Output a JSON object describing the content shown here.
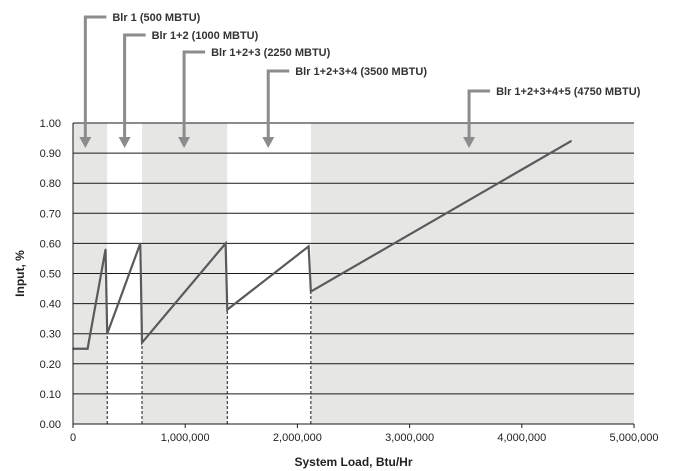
{
  "chart_data": {
    "type": "line",
    "title": "",
    "xlabel": "System Load, Btu/Hr",
    "ylabel": "Input, %",
    "xlim": [
      0,
      5000000
    ],
    "ylim": [
      0,
      1.0
    ],
    "x_ticks": [
      0,
      1000000,
      2000000,
      3000000,
      4000000,
      5000000
    ],
    "x_tick_labels": [
      "0",
      "1,000,000",
      "2,000,000",
      "3,000,000",
      "4,000,000",
      "5,000,000"
    ],
    "y_ticks": [
      0,
      0.1,
      0.2,
      0.3,
      0.4,
      0.5,
      0.6,
      0.7,
      0.8,
      0.9,
      1.0
    ],
    "y_tick_labels": [
      "0.00",
      "0.10",
      "0.20",
      "0.30",
      "0.40",
      "0.50",
      "0.60",
      "0.70",
      "0.80",
      "0.90",
      "1.00"
    ],
    "grid": "horizontal",
    "colors": {
      "line": "#5a5a5a",
      "band": "#e6e6e5",
      "grid": "#1a1a1a",
      "arrow": "#8c8c8c"
    },
    "series": [
      {
        "x": [
          0,
          130000,
          290000,
          305000,
          600000,
          615000,
          1360000,
          1375000,
          2100000,
          2120000,
          4440000
        ],
        "y": [
          0.25,
          0.25,
          0.58,
          0.3,
          0.6,
          0.27,
          0.6,
          0.38,
          0.59,
          0.44,
          0.94
        ]
      }
    ],
    "boiler_stages": [
      {
        "label": "Blr 1 (500 MBTU)",
        "band": [
          0,
          305000
        ],
        "arrow_x": 110000
      },
      {
        "label": "Blr 1+2 (1000 MBTU)",
        "band": [
          305000,
          615000
        ],
        "arrow_x": 460000
      },
      {
        "label": "Blr 1+2+3 (2250 MBTU)",
        "band": [
          615000,
          1375000
        ],
        "arrow_x": 990000
      },
      {
        "label": "Blr 1+2+3+4 (3500 MBTU)",
        "band": [
          1375000,
          2120000
        ],
        "arrow_x": 1740000
      },
      {
        "label": "Blr 1+2+3+4+5 (4750 MBTU)",
        "band": [
          2120000,
          5000000
        ],
        "arrow_x": 3530000
      }
    ],
    "stage_change_x": [
      305000,
      615000,
      1375000,
      2120000
    ]
  }
}
